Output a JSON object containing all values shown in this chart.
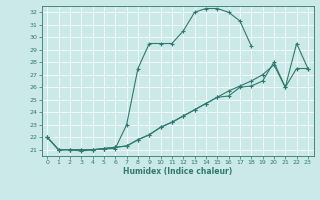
{
  "xlabel": "Humidex (Indice chaleur)",
  "bg_color": "#cce9e9",
  "line_color": "#2d7a6e",
  "xlim": [
    -0.5,
    23.5
  ],
  "ylim": [
    20.5,
    32.5
  ],
  "xticks": [
    0,
    1,
    2,
    3,
    4,
    5,
    6,
    7,
    8,
    9,
    10,
    11,
    12,
    13,
    14,
    15,
    16,
    17,
    18,
    19,
    20,
    21,
    22,
    23
  ],
  "yticks": [
    21,
    22,
    23,
    24,
    25,
    26,
    27,
    28,
    29,
    30,
    31,
    32
  ],
  "line1_x": [
    0,
    1,
    2,
    3,
    4,
    5,
    6,
    7,
    8,
    9,
    10,
    11,
    12,
    13,
    14,
    15,
    16,
    17,
    18
  ],
  "line1_y": [
    22,
    21,
    21,
    20.9,
    21.0,
    21.05,
    21.1,
    23.0,
    27.5,
    29.5,
    29.5,
    29.5,
    30.5,
    32.0,
    32.3,
    32.3,
    32.0,
    31.3,
    29.3
  ],
  "line2_x": [
    0,
    1,
    2,
    3,
    4,
    5,
    6,
    7,
    8,
    9,
    10,
    11,
    12,
    13,
    14,
    15,
    16,
    17,
    18,
    19,
    20,
    21,
    22,
    23
  ],
  "line2_y": [
    22,
    21,
    21,
    21.0,
    21.0,
    21.1,
    21.2,
    21.3,
    21.8,
    22.2,
    22.8,
    23.2,
    23.7,
    24.2,
    24.7,
    25.2,
    25.7,
    26.1,
    26.5,
    27.0,
    27.8,
    26.0,
    27.5,
    27.5
  ],
  "line3_x": [
    0,
    1,
    2,
    3,
    4,
    5,
    6,
    7,
    8,
    9,
    10,
    11,
    12,
    13,
    14,
    15,
    16,
    17,
    18,
    19,
    20,
    21,
    22,
    23
  ],
  "line3_y": [
    22,
    21,
    21,
    21.0,
    21.0,
    21.1,
    21.2,
    21.3,
    21.8,
    22.2,
    22.8,
    23.2,
    23.7,
    24.2,
    24.7,
    25.2,
    25.3,
    26.0,
    26.1,
    26.5,
    28.0,
    26.0,
    29.5,
    27.5
  ]
}
